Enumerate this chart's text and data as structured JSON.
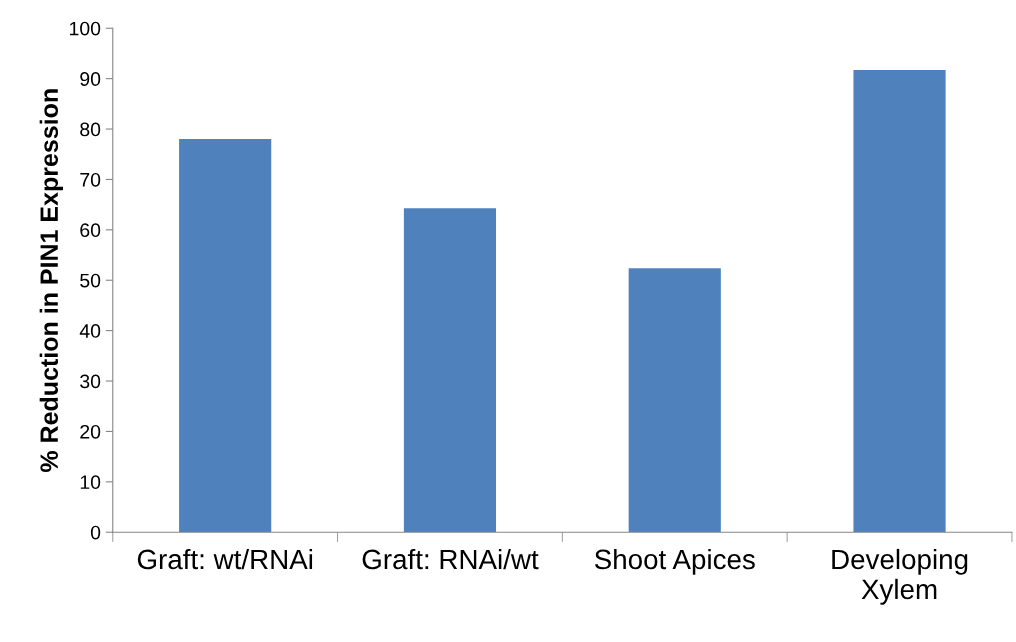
{
  "chart_data": {
    "type": "bar",
    "ylabel": "% Reduction in PIN1 Expression",
    "categories": [
      "Graft: wt/RNAi",
      "Graft: RNAi/wt",
      "Shoot Apices",
      "Developing\nXylem"
    ],
    "values": [
      78,
      64.3,
      52.4,
      91.7
    ],
    "color": "#4f81bd",
    "ylim": [
      0,
      100
    ],
    "yticks": [
      0,
      10,
      20,
      30,
      40,
      50,
      60,
      70,
      80,
      90,
      100
    ],
    "grid": false,
    "legend": false
  }
}
